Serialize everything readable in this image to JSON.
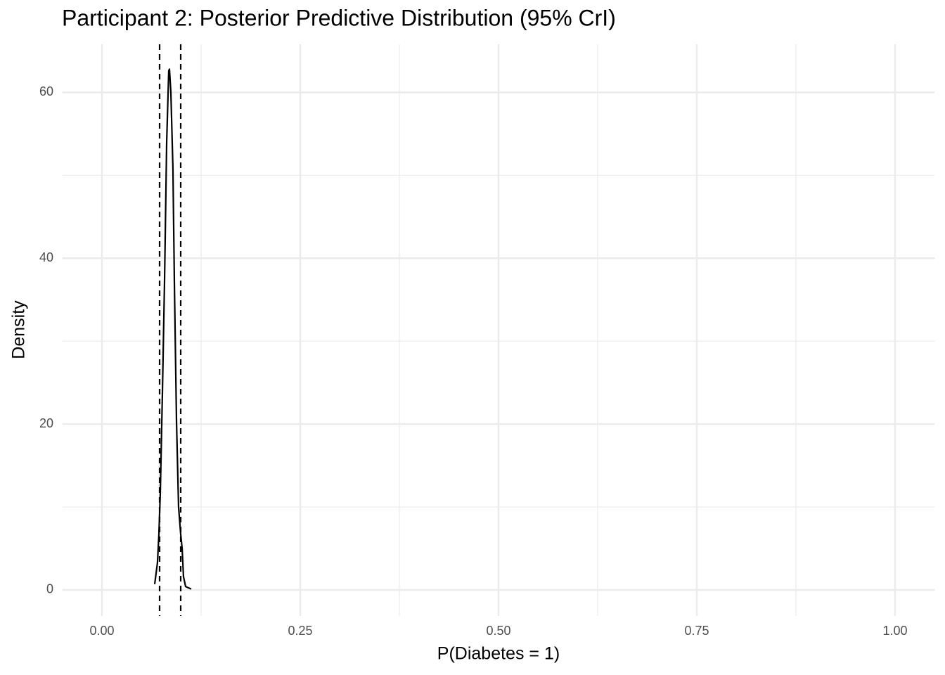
{
  "chart_data": {
    "type": "line",
    "title": "Participant 2: Posterior Predictive Distribution (95% CrI)",
    "x_label": "P(Diabetes = 1)",
    "y_label": "Density",
    "x": [
      0.0665,
      0.07,
      0.0718,
      0.0736,
      0.0762,
      0.0789,
      0.0816,
      0.0842,
      0.0851,
      0.0869,
      0.0895,
      0.0913,
      0.094,
      0.0966,
      0.0993,
      0.1011,
      0.1028,
      0.1055,
      0.1126
    ],
    "series": [
      {
        "color": "#000000",
        "values": [
          0.7,
          3.3,
          6.7,
          11.8,
          23.6,
          37.2,
          54,
          62.6,
          62.8,
          60,
          50.8,
          37.2,
          20.3,
          10,
          6.7,
          5,
          1.6,
          0.4,
          0.1
        ]
      }
    ],
    "vlines": [
      0.0727,
      0.0993
    ],
    "xlim": [
      -0.05,
      1.05
    ],
    "ylim": [
      -3.14,
      65.8
    ],
    "xticks": [
      {
        "value": 0,
        "label": "0.00"
      },
      {
        "value": 0.25,
        "label": "0.25"
      },
      {
        "value": 0.5,
        "label": "0.50"
      },
      {
        "value": 0.75,
        "label": "0.75"
      },
      {
        "value": 1,
        "label": "1.00"
      }
    ],
    "yticks": [
      0,
      20,
      40,
      60
    ],
    "x_minor_ticks": [
      0.125,
      0.375,
      0.625,
      0.875
    ],
    "y_minor_ticks": [
      10,
      30,
      50
    ],
    "grid": true
  }
}
